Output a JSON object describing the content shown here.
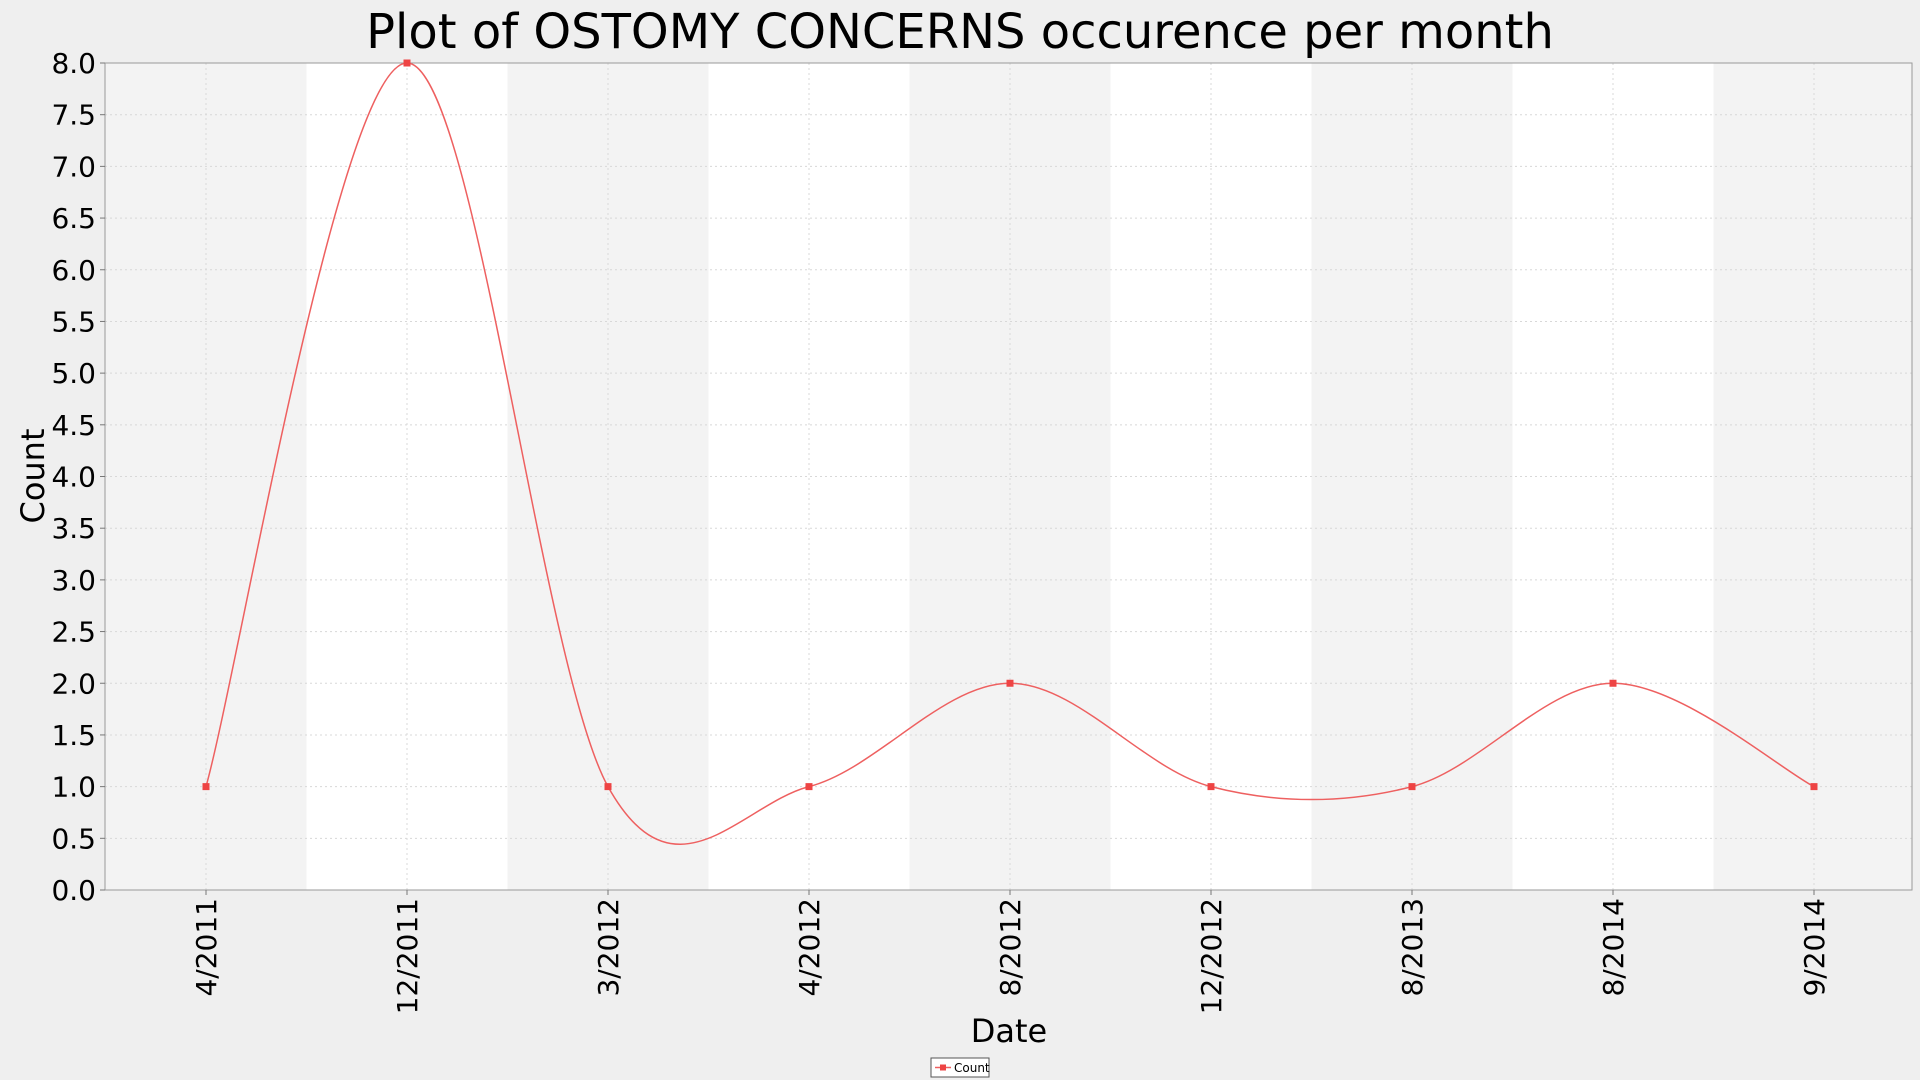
{
  "chart_data": {
    "type": "line",
    "title": "Plot of OSTOMY CONCERNS occurence per month",
    "xlabel": "Date",
    "ylabel": "Count",
    "categories": [
      "4/2011",
      "12/2011",
      "3/2012",
      "4/2012",
      "8/2012",
      "12/2012",
      "8/2013",
      "8/2014",
      "9/2014"
    ],
    "series": [
      {
        "name": "Count",
        "values": [
          1,
          8,
          1,
          1,
          2,
          1,
          1,
          2,
          1
        ]
      }
    ],
    "ylim": [
      0,
      8
    ],
    "yticks": [
      0.0,
      0.5,
      1.0,
      1.5,
      2.0,
      2.5,
      3.0,
      3.5,
      4.0,
      4.5,
      5.0,
      5.5,
      6.0,
      6.5,
      7.0,
      7.5,
      8.0
    ],
    "grid": true,
    "smoothed": true,
    "legend_position": "bottom-center",
    "colors": {
      "series": "#ee6060",
      "background": "#efefef",
      "band_light": "#ffffff",
      "band_dark": "#f3f3f3",
      "grid": "#d8d8d8"
    }
  }
}
